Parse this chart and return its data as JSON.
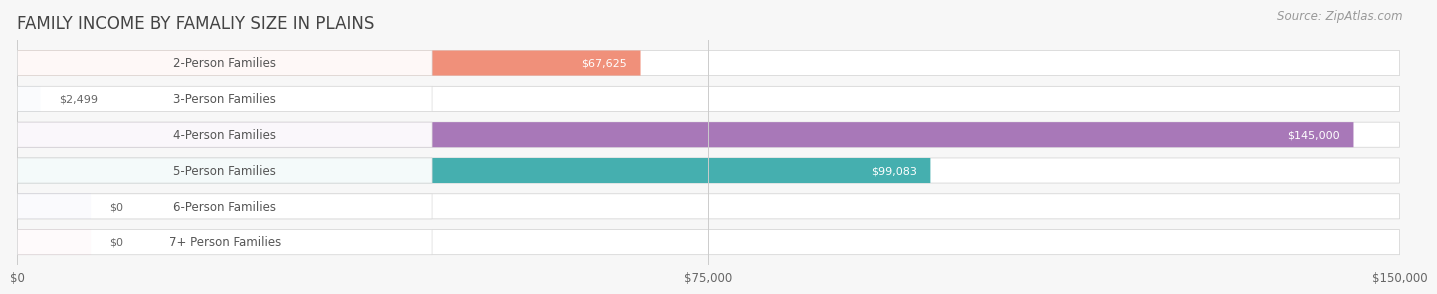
{
  "title": "FAMILY INCOME BY FAMALIY SIZE IN PLAINS",
  "source": "Source: ZipAtlas.com",
  "categories": [
    "2-Person Families",
    "3-Person Families",
    "4-Person Families",
    "5-Person Families",
    "6-Person Families",
    "7+ Person Families"
  ],
  "values": [
    67625,
    2499,
    145000,
    99083,
    0,
    0
  ],
  "display_values": [
    "$67,625",
    "$2,499",
    "$145,000",
    "$99,083",
    "$0",
    "$0"
  ],
  "bar_colors": [
    "#F0907A",
    "#A8C0E0",
    "#A878B8",
    "#45AFAF",
    "#B0B4E8",
    "#F4A8C0"
  ],
  "xlim": [
    0,
    150000
  ],
  "xticks": [
    0,
    75000,
    150000
  ],
  "xtick_labels": [
    "$0",
    "$75,000",
    "$150,000"
  ],
  "background_color": "#f7f7f7",
  "bar_bg_color": "#e8e8e8",
  "row_bg_color": "#efefef",
  "title_fontsize": 12,
  "label_fontsize": 8.5,
  "value_fontsize": 8.0,
  "source_fontsize": 8.5,
  "title_color": "#444444",
  "label_color": "#555555",
  "value_color_inside": "#ffffff",
  "value_color_outside": "#666666",
  "bar_height": 0.7,
  "value_threshold": 20000,
  "small_bar_width": 8000
}
